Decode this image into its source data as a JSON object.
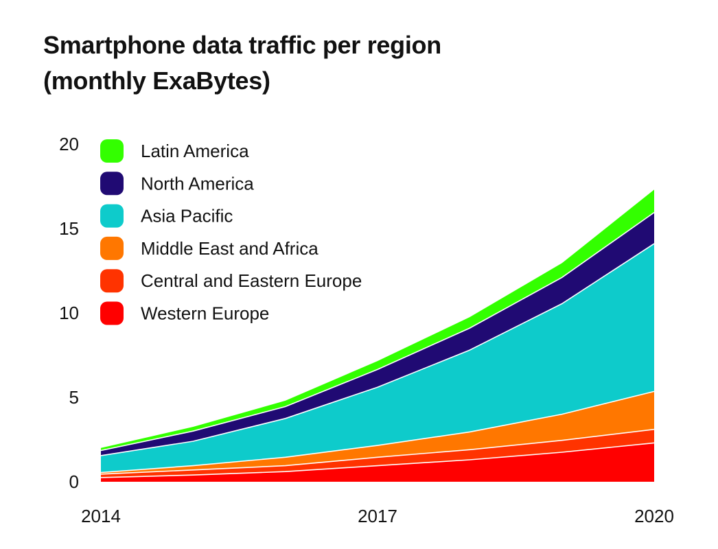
{
  "chart_data": {
    "type": "area",
    "stacked": true,
    "title": "Smartphone data traffic per region",
    "subtitle": "(monthly ExaBytes)",
    "xlabel": "",
    "ylabel": "",
    "x": [
      2014,
      2015,
      2016,
      2017,
      2018,
      2019,
      2020
    ],
    "x_tick_labels": [
      "2014",
      "2017",
      "2020"
    ],
    "y_tick_labels": [
      "0",
      "5",
      "10",
      "15",
      "20"
    ],
    "ylim": [
      0,
      20
    ],
    "xlim": [
      2014,
      2020
    ],
    "grid": false,
    "legend_position": "top-left",
    "series": [
      {
        "name": "Western Europe",
        "color": "#FF0000",
        "values": [
          0.25,
          0.4,
          0.6,
          0.95,
          1.3,
          1.75,
          2.3
        ]
      },
      {
        "name": "Central and Eastern Europe",
        "color": "#FF3300",
        "values": [
          0.2,
          0.3,
          0.35,
          0.5,
          0.6,
          0.7,
          0.8
        ]
      },
      {
        "name": "Middle East and Africa",
        "color": "#FF7700",
        "values": [
          0.1,
          0.25,
          0.5,
          0.7,
          1.05,
          1.55,
          2.25
        ]
      },
      {
        "name": "Asia Pacific",
        "color": "#0ECBCB",
        "values": [
          1.0,
          1.45,
          2.3,
          3.45,
          4.85,
          6.55,
          8.75
        ]
      },
      {
        "name": "North America",
        "color": "#200A73",
        "values": [
          0.3,
          0.6,
          0.7,
          1.05,
          1.3,
          1.55,
          1.85
        ]
      },
      {
        "name": "Latin America",
        "color": "#33FF00",
        "values": [
          0.15,
          0.25,
          0.35,
          0.5,
          0.65,
          0.85,
          1.35
        ]
      }
    ]
  }
}
